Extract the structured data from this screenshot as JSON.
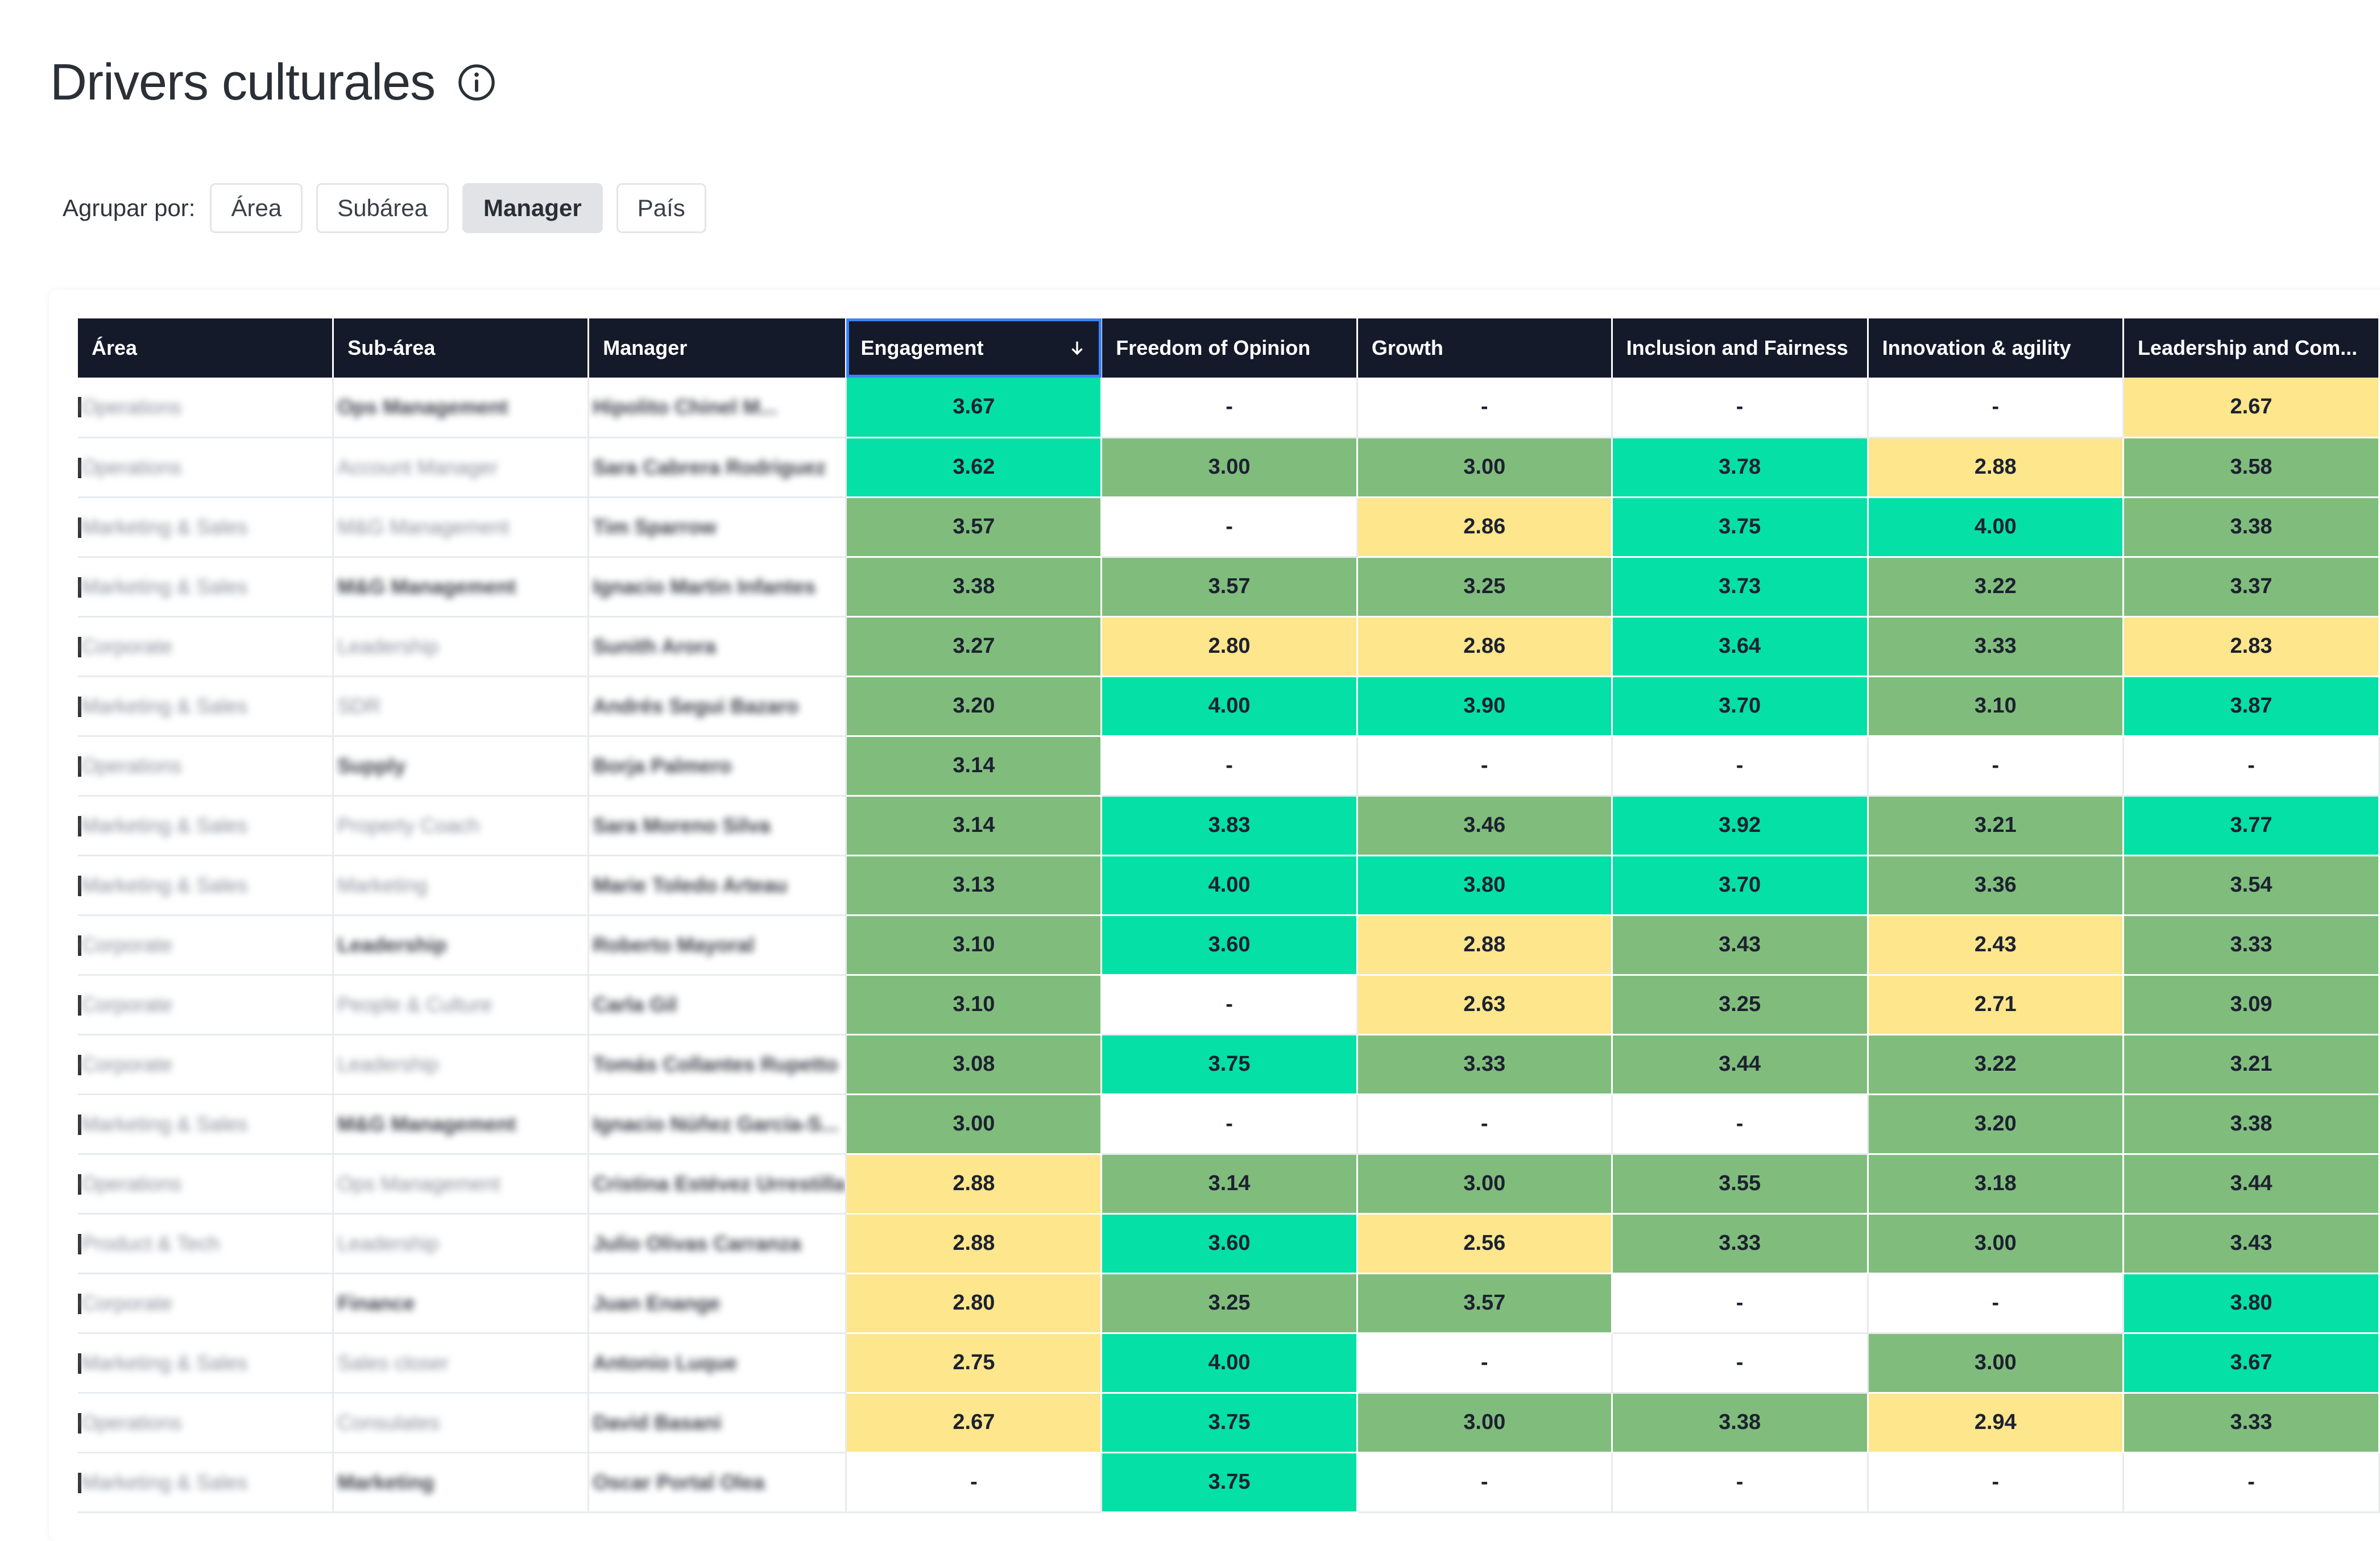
{
  "title": "Drivers culturales",
  "group_by": {
    "label": "Agrupar por:",
    "options": [
      "Área",
      "Subárea",
      "Manager",
      "País"
    ],
    "active": "Manager"
  },
  "colors": {
    "teal": "#04e0a6",
    "green": "#80bd7d",
    "yellow": "#fde68c",
    "header": "#141a2a"
  },
  "table": {
    "columns": [
      "Área",
      "Sub-área",
      "Manager",
      "Engagement",
      "Freedom of Opinion",
      "Growth",
      "Inclusion and Fairness",
      "Innovation & agility",
      "Leadership and Com..."
    ],
    "sorted_column": "Engagement",
    "rows": [
      {
        "area": "Operations",
        "subarea": "Ops Management",
        "manager": "Hipolito Chinel M...",
        "vals": [
          "3.67",
          "-",
          "-",
          "-",
          "-",
          "2.67"
        ],
        "sc": [
          "teal",
          "empty",
          "empty",
          "empty",
          "empty",
          "yellow"
        ]
      },
      {
        "area": "Operations",
        "subarea": "Account Manager",
        "manager": "Sara Cabrera Rodriguez",
        "vals": [
          "3.62",
          "3.00",
          "3.00",
          "3.78",
          "2.88",
          "3.58"
        ],
        "sc": [
          "teal",
          "green",
          "green",
          "teal",
          "yellow",
          "green"
        ]
      },
      {
        "area": "Marketing & Sales",
        "subarea": "M&G Management",
        "manager": "Tim Sparrow",
        "vals": [
          "3.57",
          "-",
          "2.86",
          "3.75",
          "4.00",
          "3.38"
        ],
        "sc": [
          "green",
          "empty",
          "yellow",
          "teal",
          "teal",
          "green"
        ]
      },
      {
        "area": "Marketing & Sales",
        "subarea": "M&G Management",
        "manager": "Ignacio Martin Infantes",
        "vals": [
          "3.38",
          "3.57",
          "3.25",
          "3.73",
          "3.22",
          "3.37"
        ],
        "sc": [
          "green",
          "green",
          "green",
          "teal",
          "green",
          "green"
        ]
      },
      {
        "area": "Corporate",
        "subarea": "Leadership",
        "manager": "Sunith Arora",
        "vals": [
          "3.27",
          "2.80",
          "2.86",
          "3.64",
          "3.33",
          "2.83"
        ],
        "sc": [
          "green",
          "yellow",
          "yellow",
          "teal",
          "green",
          "yellow"
        ]
      },
      {
        "area": "Marketing & Sales",
        "subarea": "SDR",
        "manager": "Andrés Segui Bazaro",
        "vals": [
          "3.20",
          "4.00",
          "3.90",
          "3.70",
          "3.10",
          "3.87"
        ],
        "sc": [
          "green",
          "teal",
          "teal",
          "teal",
          "green",
          "teal"
        ]
      },
      {
        "area": "Operations",
        "subarea": "Supply",
        "manager": "Borja Palmero",
        "vals": [
          "3.14",
          "-",
          "-",
          "-",
          "-",
          "-"
        ],
        "sc": [
          "green",
          "empty",
          "empty",
          "empty",
          "empty",
          "empty"
        ]
      },
      {
        "area": "Marketing & Sales",
        "subarea": "Property Coach",
        "manager": "Sara Moreno Silva",
        "vals": [
          "3.14",
          "3.83",
          "3.46",
          "3.92",
          "3.21",
          "3.77"
        ],
        "sc": [
          "green",
          "teal",
          "green",
          "teal",
          "green",
          "teal"
        ]
      },
      {
        "area": "Marketing & Sales",
        "subarea": "Marketing",
        "manager": "Marie Toledo Arteau",
        "vals": [
          "3.13",
          "4.00",
          "3.80",
          "3.70",
          "3.36",
          "3.54"
        ],
        "sc": [
          "green",
          "teal",
          "teal",
          "teal",
          "green",
          "green"
        ]
      },
      {
        "area": "Corporate",
        "subarea": "Leadership",
        "manager": "Roberto Mayoral",
        "vals": [
          "3.10",
          "3.60",
          "2.88",
          "3.43",
          "2.43",
          "3.33"
        ],
        "sc": [
          "green",
          "teal",
          "yellow",
          "green",
          "yellow",
          "green"
        ]
      },
      {
        "area": "Corporate",
        "subarea": "People & Culture",
        "manager": "Carla Gil",
        "vals": [
          "3.10",
          "-",
          "2.63",
          "3.25",
          "2.71",
          "3.09"
        ],
        "sc": [
          "green",
          "empty",
          "yellow",
          "green",
          "yellow",
          "green"
        ]
      },
      {
        "area": "Corporate",
        "subarea": "Leadership",
        "manager": "Tomás Collantes Rupetto",
        "vals": [
          "3.08",
          "3.75",
          "3.33",
          "3.44",
          "3.22",
          "3.21"
        ],
        "sc": [
          "green",
          "teal",
          "green",
          "green",
          "green",
          "green"
        ]
      },
      {
        "area": "Marketing & Sales",
        "subarea": "M&G Management",
        "manager": "Ignacio Núñez García-S...",
        "vals": [
          "3.00",
          "-",
          "-",
          "-",
          "3.20",
          "3.38"
        ],
        "sc": [
          "green",
          "empty",
          "empty",
          "empty",
          "green",
          "green"
        ]
      },
      {
        "area": "Operations",
        "subarea": "Ops Management",
        "manager": "Cristina Estévez Urrestilla",
        "vals": [
          "2.88",
          "3.14",
          "3.00",
          "3.55",
          "3.18",
          "3.44"
        ],
        "sc": [
          "yellow",
          "green",
          "green",
          "green",
          "green",
          "green"
        ]
      },
      {
        "area": "Product & Tech",
        "subarea": "Leadership",
        "manager": "Julio Olivas Carranza",
        "vals": [
          "2.88",
          "3.60",
          "2.56",
          "3.33",
          "3.00",
          "3.43"
        ],
        "sc": [
          "yellow",
          "teal",
          "yellow",
          "green",
          "green",
          "green"
        ]
      },
      {
        "area": "Corporate",
        "subarea": "Finance",
        "manager": "Juan Enange",
        "vals": [
          "2.80",
          "3.25",
          "3.57",
          "-",
          "-",
          "3.80"
        ],
        "sc": [
          "yellow",
          "green",
          "green",
          "empty",
          "empty",
          "teal"
        ]
      },
      {
        "area": "Marketing & Sales",
        "subarea": "Sales closer",
        "manager": "Antonio Luque",
        "vals": [
          "2.75",
          "4.00",
          "-",
          "-",
          "3.00",
          "3.67"
        ],
        "sc": [
          "yellow",
          "teal",
          "empty",
          "empty",
          "green",
          "teal"
        ]
      },
      {
        "area": "Operations",
        "subarea": "Consulates",
        "manager": "David Basani",
        "vals": [
          "2.67",
          "3.75",
          "3.00",
          "3.38",
          "2.94",
          "3.33"
        ],
        "sc": [
          "yellow",
          "teal",
          "green",
          "green",
          "yellow",
          "green"
        ]
      },
      {
        "area": "Marketing & Sales",
        "subarea": "Marketing",
        "manager": "Oscar Portal Olea",
        "vals": [
          "-",
          "3.75",
          "-",
          "-",
          "-",
          "-"
        ],
        "sc": [
          "empty",
          "teal",
          "empty",
          "empty",
          "empty",
          "empty"
        ]
      }
    ]
  }
}
